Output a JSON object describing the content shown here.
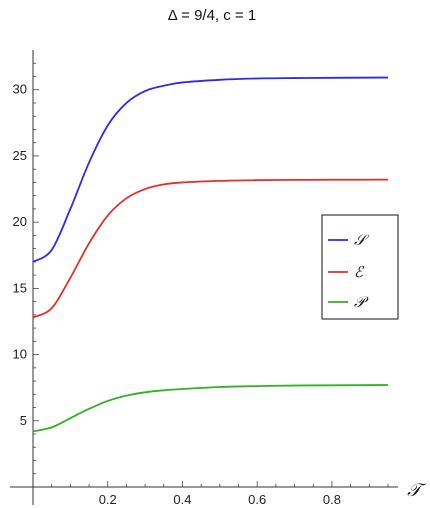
{
  "chart_data": {
    "type": "line",
    "title": "Δ = 9/4, c = 1",
    "xlabel": "𝒯",
    "ylabel": "",
    "xlim": [
      0,
      0.95
    ],
    "ylim": [
      0,
      33
    ],
    "xticks": [
      0.2,
      0.4,
      0.6,
      0.8
    ],
    "xtick_labels": [
      "0.2",
      "0.4",
      "0.6",
      "0.8"
    ],
    "yticks": [
      5,
      10,
      15,
      20,
      25,
      30
    ],
    "ytick_labels": [
      "5",
      "10",
      "15",
      "20",
      "25",
      "30"
    ],
    "grid": false,
    "legend_position": "right",
    "x": [
      0,
      0.05,
      0.1,
      0.15,
      0.2,
      0.25,
      0.3,
      0.35,
      0.4,
      0.5,
      0.6,
      0.7,
      0.8,
      0.95
    ],
    "series": [
      {
        "name": "𝒮",
        "color": "#2a2af0",
        "values": [
          17.0,
          17.9,
          21.0,
          24.5,
          27.3,
          29.0,
          29.9,
          30.3,
          30.55,
          30.75,
          30.85,
          30.88,
          30.9,
          30.92
        ]
      },
      {
        "name": "ℰ",
        "color": "#e0302a",
        "values": [
          12.8,
          13.5,
          15.8,
          18.4,
          20.5,
          21.8,
          22.5,
          22.85,
          23.0,
          23.12,
          23.17,
          23.19,
          23.2,
          23.21
        ]
      },
      {
        "name": "𝒫",
        "color": "#33b026",
        "values": [
          4.2,
          4.5,
          5.2,
          5.9,
          6.5,
          6.9,
          7.15,
          7.3,
          7.4,
          7.55,
          7.62,
          7.66,
          7.68,
          7.7
        ]
      }
    ]
  }
}
